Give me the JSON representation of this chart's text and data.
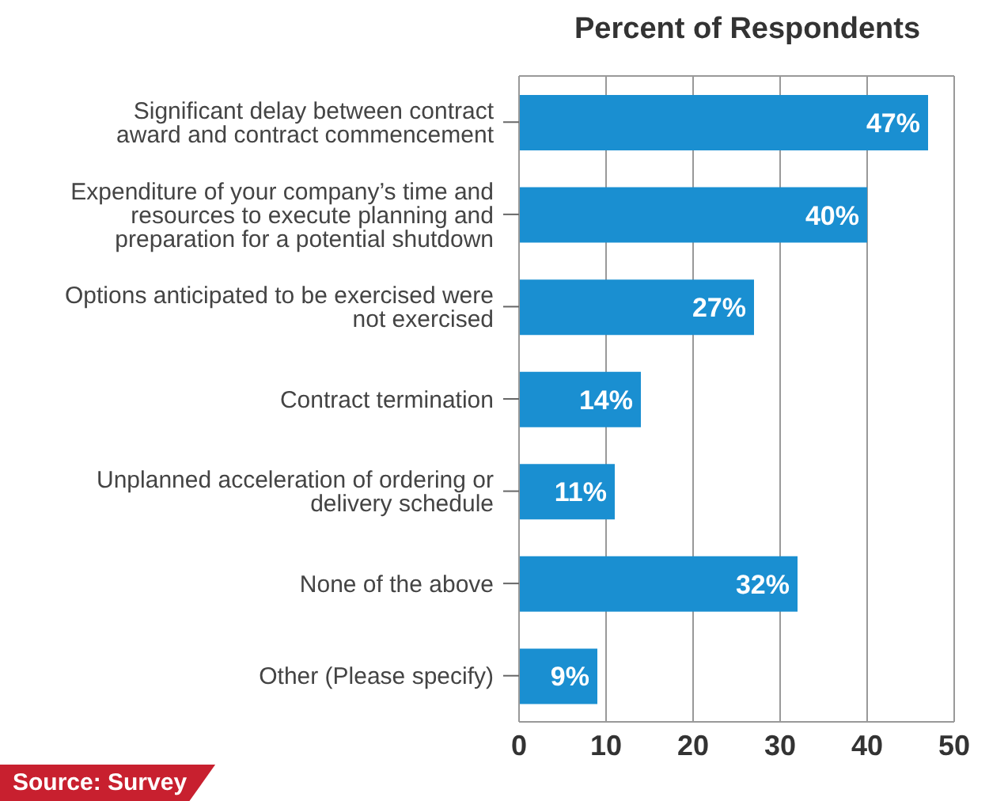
{
  "chart_data": {
    "type": "bar",
    "orientation": "horizontal",
    "title": "Percent of Respondents",
    "categories": [
      "Significant delay between contract award and contract commencement",
      "Expenditure of your company’s time and resources to execute planning and preparation for a potential shutdown",
      "Options anticipated to be exercised were not exercised",
      "Contract termination",
      "Unplanned acceleration of ordering or delivery schedule",
      "None of the above",
      "Other (Please specify)"
    ],
    "values": [
      47,
      40,
      27,
      14,
      11,
      32,
      9
    ],
    "value_labels": [
      "47%",
      "40%",
      "27%",
      "14%",
      "11%",
      "32%",
      "9%"
    ],
    "color": "#1a8fd1",
    "xlim": [
      0,
      50
    ],
    "xticks": [
      0,
      10,
      20,
      30,
      40,
      50
    ],
    "grid": "x",
    "annotations": [
      "Source: Survey"
    ]
  }
}
